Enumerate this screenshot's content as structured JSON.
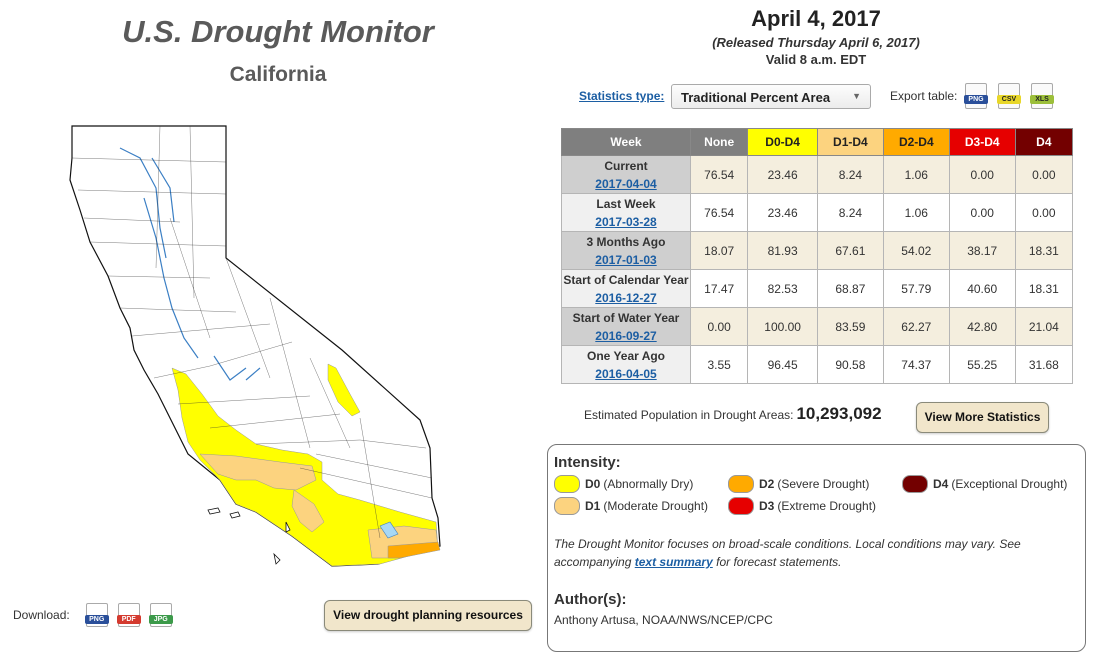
{
  "header": {
    "title": "U.S. Drought Monitor",
    "region": "California",
    "date": "April 4, 2017",
    "released": "(Released Thursday April 6, 2017)",
    "valid": "Valid 8 a.m. EDT"
  },
  "controls": {
    "stats_type_label": "Statistics type:",
    "stats_type_value": "Traditional Percent Area",
    "export_label": "Export table:",
    "export_formats": [
      "PNG",
      "CSV",
      "XLS"
    ]
  },
  "table": {
    "headers": [
      "Week",
      "None",
      "D0-D4",
      "D1-D4",
      "D2-D4",
      "D3-D4",
      "D4"
    ],
    "header_colors": [
      "#7f7f7f",
      "#7f7f7f",
      "#ffff00",
      "#fcd37f",
      "#ffaa00",
      "#e60000",
      "#730000"
    ],
    "rows": [
      {
        "label": "Current",
        "date": "2017-04-04",
        "values": [
          "76.54",
          "23.46",
          "8.24",
          "1.06",
          "0.00",
          "0.00"
        ]
      },
      {
        "label": "Last Week",
        "date": "2017-03-28",
        "values": [
          "76.54",
          "23.46",
          "8.24",
          "1.06",
          "0.00",
          "0.00"
        ]
      },
      {
        "label": "3 Months Ago",
        "date": "2017-01-03",
        "values": [
          "18.07",
          "81.93",
          "67.61",
          "54.02",
          "38.17",
          "18.31"
        ]
      },
      {
        "label": "Start of Calendar Year",
        "date": "2016-12-27",
        "values": [
          "17.47",
          "82.53",
          "68.87",
          "57.79",
          "40.60",
          "18.31"
        ]
      },
      {
        "label": "Start of Water Year",
        "date": "2016-09-27",
        "values": [
          "0.00",
          "100.00",
          "83.59",
          "62.27",
          "42.80",
          "21.04"
        ]
      },
      {
        "label": "One Year Ago",
        "date": "2016-04-05",
        "values": [
          "3.55",
          "96.45",
          "90.58",
          "74.37",
          "55.25",
          "31.68"
        ]
      }
    ]
  },
  "population": {
    "label": "Estimated Population in Drought Areas:",
    "value": "10,293,092",
    "button": "View More Statistics"
  },
  "legend": {
    "title": "Intensity:",
    "items": [
      {
        "code": "D0",
        "desc": "(Abnormally Dry)",
        "color": "#ffff00"
      },
      {
        "code": "D1",
        "desc": "(Moderate Drought)",
        "color": "#fcd37f"
      },
      {
        "code": "D2",
        "desc": "(Severe Drought)",
        "color": "#ffaa00"
      },
      {
        "code": "D3",
        "desc": "(Extreme Drought)",
        "color": "#e60000"
      },
      {
        "code": "D4",
        "desc": "(Exceptional Drought)",
        "color": "#730000"
      }
    ],
    "note_part1": "The Drought Monitor focuses on broad-scale conditions. Local conditions may vary. See accompanying",
    "note_link": "text summary",
    "note_part2": "for forecast statements.",
    "author_title": "Author(s):",
    "author": "Anthony Artusa, NOAA/NWS/NCEP/CPC"
  },
  "download": {
    "label": "Download:",
    "formats": [
      "PNG",
      "PDF",
      "JPG"
    ],
    "planning_button": "View drought planning resources"
  }
}
